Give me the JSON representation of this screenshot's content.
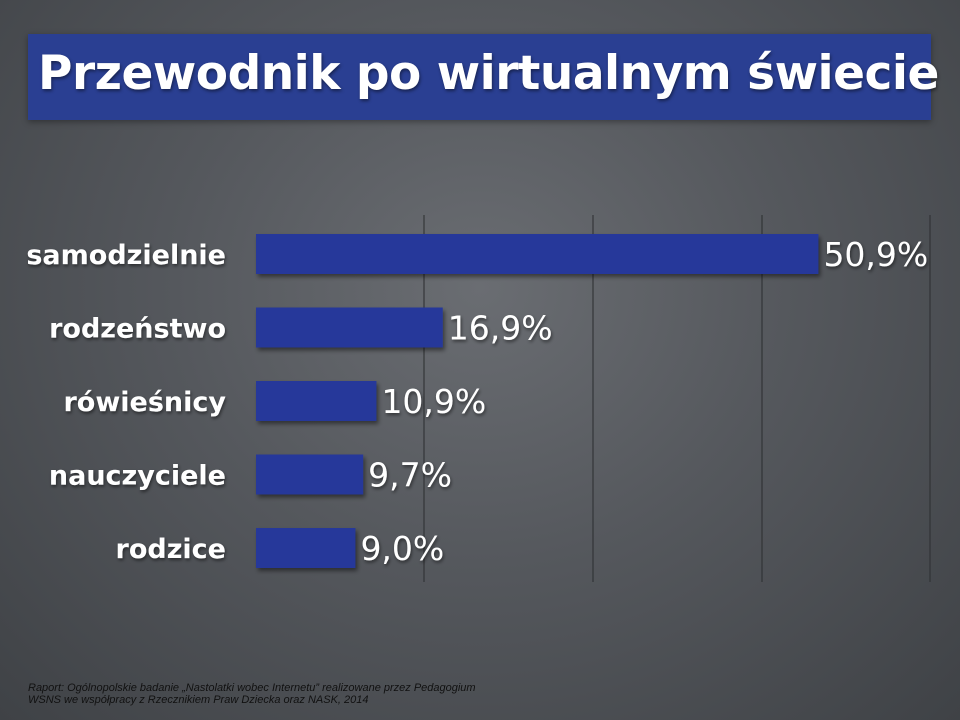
{
  "title": "Przewodnik po wirtualnym świecie",
  "footer": {
    "line1": "Raport: Ogólnopolskie badanie „Nastolatki wobec Internetu” realizowane przez Pedagogium",
    "line2": "WSNS we współpracy z Rzecznikiem Praw Dziecka oraz NASK, 2014"
  },
  "colors": {
    "title_bar": "#2a3f92",
    "bar": "#25389a",
    "text": "#ffffff"
  },
  "chart_data": {
    "type": "bar",
    "orientation": "horizontal",
    "categories": [
      "samodzielnie",
      "rodzeństwo",
      "rówieśnicy",
      "nauczyciele",
      "rodzice"
    ],
    "values": [
      50.9,
      16.9,
      10.9,
      9.7,
      9.0
    ],
    "value_labels": [
      "50,9%",
      "16,9%",
      "10,9%",
      "9,7%",
      "9,0%"
    ],
    "unit": "%",
    "grid": true
  }
}
